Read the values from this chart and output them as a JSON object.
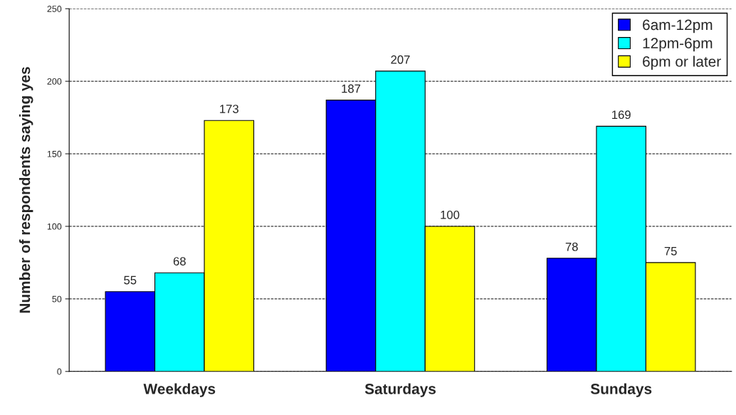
{
  "chart_data": {
    "type": "bar",
    "ylabel": "Number of respondents saying yes",
    "categories": [
      "Weekdays",
      "Saturdays",
      "Sundays"
    ],
    "series": [
      {
        "name": "6am-12pm",
        "color": "#0000ff",
        "values": [
          55,
          187,
          78
        ]
      },
      {
        "name": "12pm-6pm",
        "color": "#00ffff",
        "values": [
          68,
          207,
          169
        ]
      },
      {
        "name": "6pm or later",
        "color": "#ffff00",
        "values": [
          173,
          100,
          75
        ]
      }
    ],
    "ylim": [
      0,
      250
    ],
    "yticks": [
      0,
      50,
      100,
      150,
      200,
      250
    ],
    "grid": "y",
    "legend": "top right",
    "data_labels": true
  }
}
